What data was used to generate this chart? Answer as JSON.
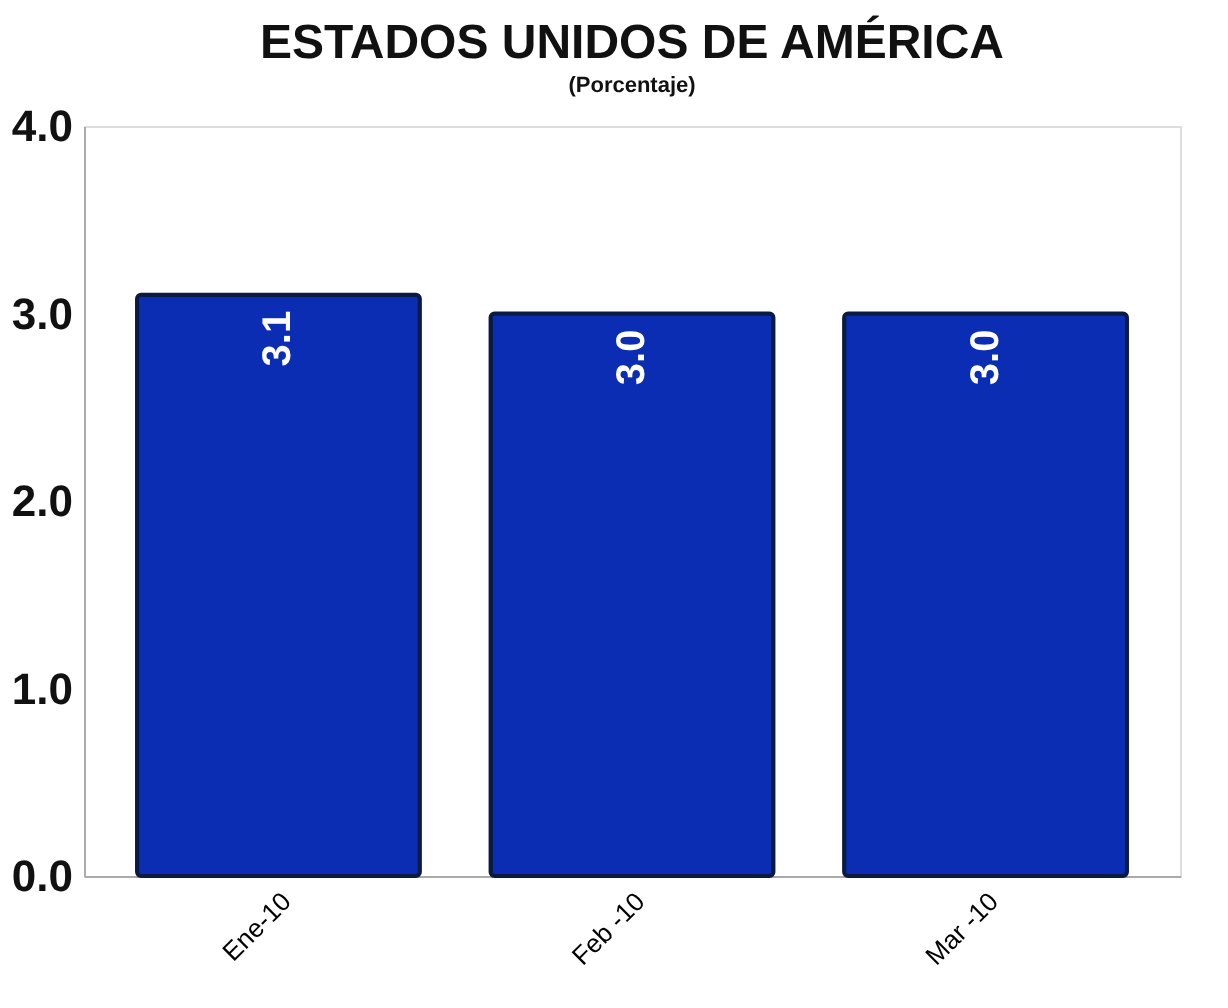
{
  "chart_data": {
    "type": "bar",
    "title": "ESTADOS UNIDOS DE AMÉRICA",
    "subtitle": "(Porcentaje)",
    "categories": [
      "Ene-10",
      "Feb -10",
      "Mar -10"
    ],
    "values": [
      3.1,
      3.0,
      3.0
    ],
    "color": "#0a2db4",
    "value_labels": [
      "3.1",
      "3.0",
      "3.0"
    ],
    "ylim": [
      0,
      4
    ],
    "yticks": [
      {
        "value": 0,
        "label": "0.0"
      },
      {
        "value": 1,
        "label": "1.0"
      },
      {
        "value": 2,
        "label": "2.0"
      },
      {
        "value": 3,
        "label": "3.0"
      },
      {
        "value": 4,
        "label": "4.0"
      }
    ],
    "grid": false
  }
}
